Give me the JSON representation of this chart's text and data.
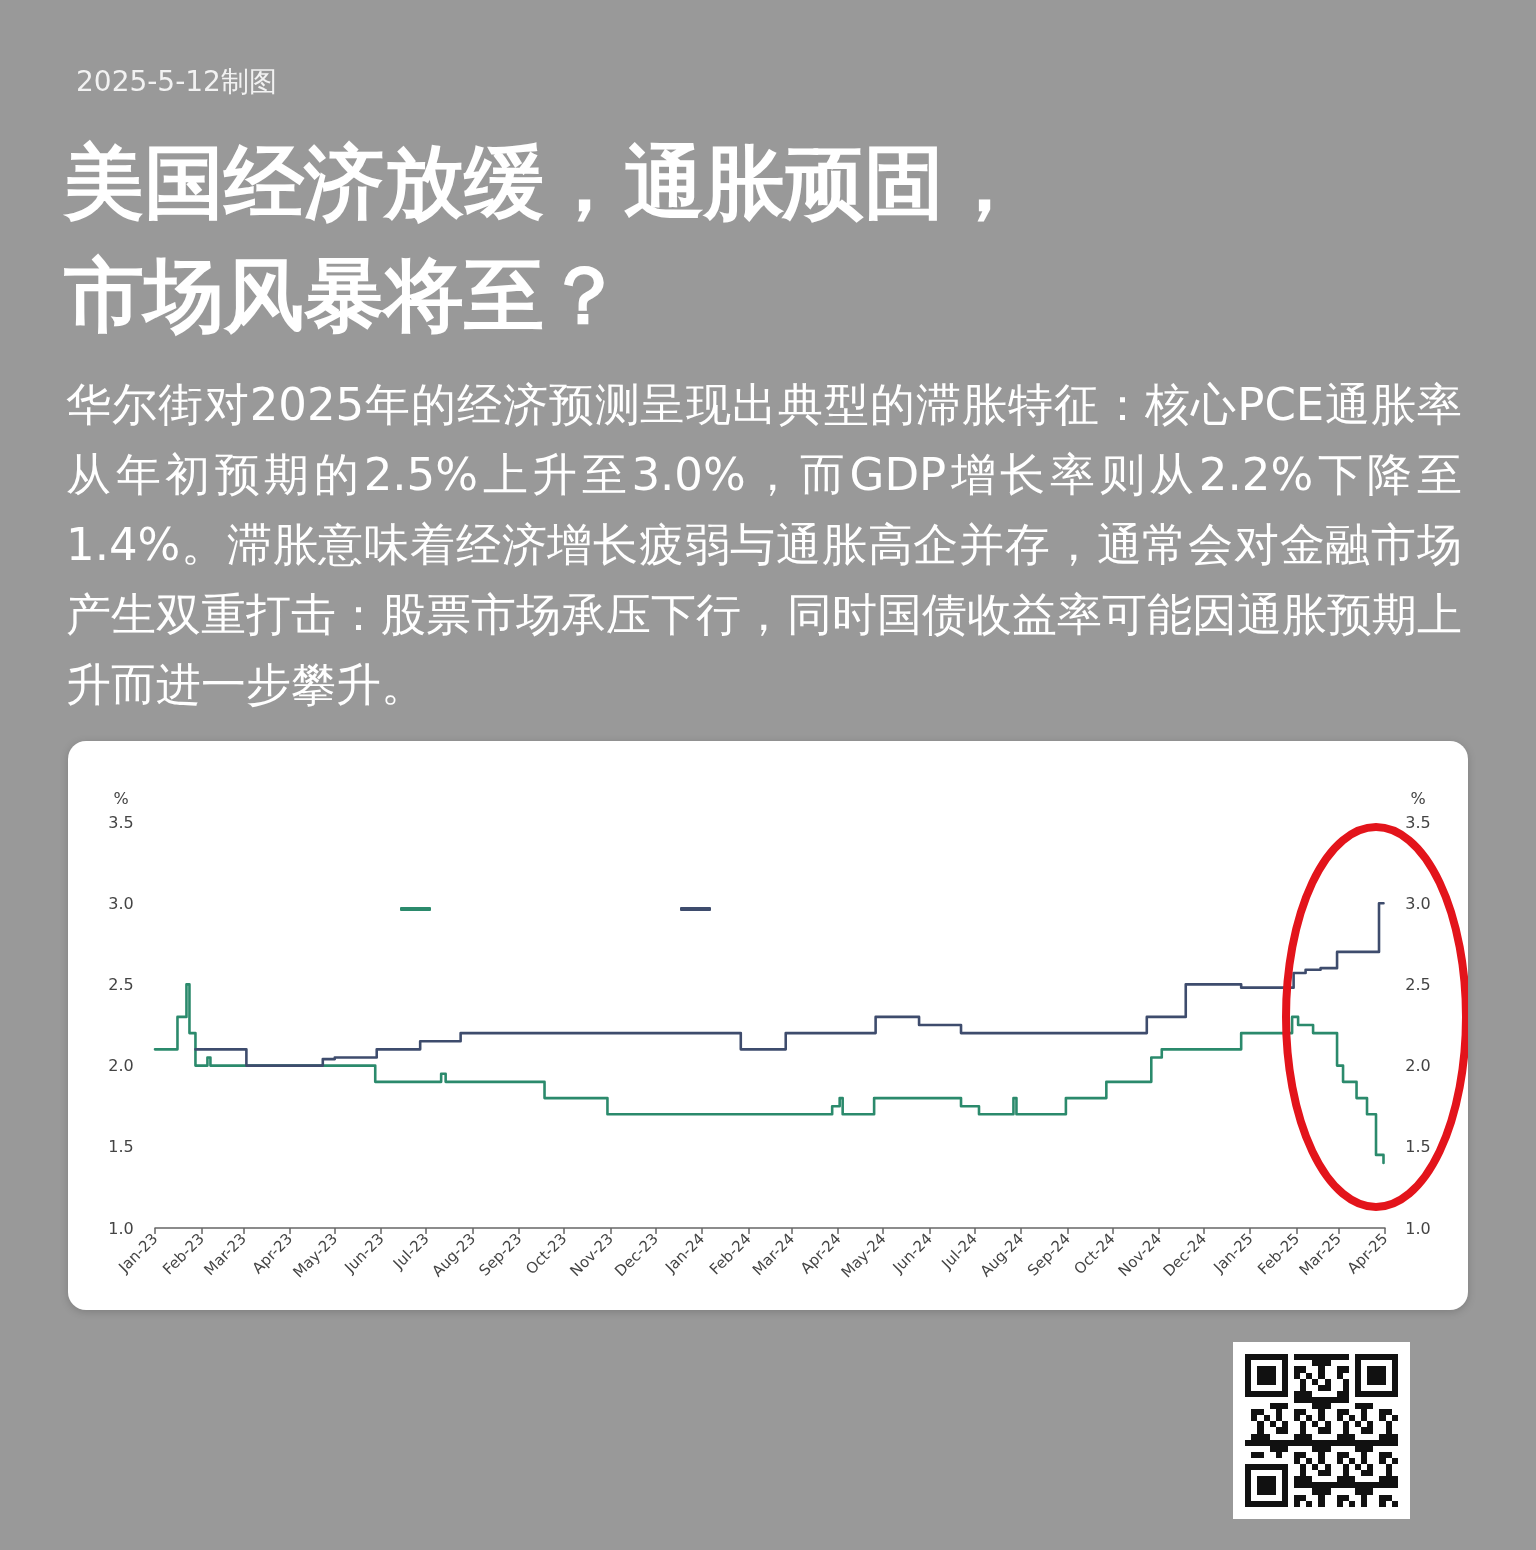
{
  "chart_data": {
    "type": "step",
    "title": "美国经济放缓，通胀顽固，市场风暴将至？",
    "subtitle": "华尔街对2025年的经济预测呈现出典型的滞胀特征：核心PCE通胀率从年初预期的2.5%上升至3.0%，而GDP增长率则从2.2%下降至1.4%。滞胀意味着经济增长疲弱与通胀高企并存，通常会对金融市场产生双重打击：股票市场承压下行，同时国债收益率可能因通胀预期上升而进一步攀升。",
    "annotations": [
      "2025-5-12制图"
    ],
    "ylabel": "%",
    "y2label": "%",
    "xlim": [
      "2023-01-01",
      "2025-04-01"
    ],
    "xticks": [
      {
        "value": "2023-01",
        "label": "Jan-23"
      },
      {
        "value": "2023-02",
        "label": "Feb-23"
      },
      {
        "value": "2023-03",
        "label": "Mar-23"
      },
      {
        "value": "2023-04",
        "label": "Apr-23"
      },
      {
        "value": "2023-05",
        "label": "May-23"
      },
      {
        "value": "2023-06",
        "label": "Jun-23"
      },
      {
        "value": "2023-07",
        "label": "Jul-23"
      },
      {
        "value": "2023-08",
        "label": "Aug-23"
      },
      {
        "value": "2023-09",
        "label": "Sep-23"
      },
      {
        "value": "2023-10",
        "label": "Oct-23"
      },
      {
        "value": "2023-11",
        "label": "Nov-23"
      },
      {
        "value": "2023-12",
        "label": "Dec-23"
      },
      {
        "value": "2024-01",
        "label": "Jan-24"
      },
      {
        "value": "2024-02",
        "label": "Feb-24"
      },
      {
        "value": "2024-03",
        "label": "Mar-24"
      },
      {
        "value": "2024-04",
        "label": "Apr-24"
      },
      {
        "value": "2024-05",
        "label": "May-24"
      },
      {
        "value": "2024-06",
        "label": "Jun-24"
      },
      {
        "value": "2024-07",
        "label": "Jul-24"
      },
      {
        "value": "2024-08",
        "label": "Aug-24"
      },
      {
        "value": "2024-09",
        "label": "Sep-24"
      },
      {
        "value": "2024-10",
        "label": "Oct-24"
      },
      {
        "value": "2024-11",
        "label": "Nov-24"
      },
      {
        "value": "2024-12",
        "label": "Dec-24"
      },
      {
        "value": "2025-01",
        "label": "Jan-25"
      },
      {
        "value": "2025-02",
        "label": "Feb-25"
      },
      {
        "value": "2025-03",
        "label": "Mar-25"
      },
      {
        "value": "2025-04",
        "label": "Apr-25"
      }
    ],
    "ylim": [
      1,
      3.5
    ],
    "yticks": [
      {
        "value": 1,
        "label": "1.0"
      },
      1.5,
      {
        "value": 2,
        "label": "2.0"
      },
      2.5,
      {
        "value": 3,
        "label": "3.0"
      },
      3.5
    ],
    "y2lim": [
      1,
      3.5
    ],
    "y2ticks": [
      {
        "value": 1,
        "label": "1.0"
      },
      1.5,
      {
        "value": 2,
        "label": "2.0"
      },
      2.5,
      {
        "value": 3,
        "label": "3.0"
      },
      3.5
    ],
    "marker": "none",
    "series": [
      {
        "color": "#2b8a6c",
        "x": [
          "2023-01-01",
          "2023-01-16",
          "2023-01-22",
          "2023-01-24",
          "2023-01-28",
          "2023-02-05",
          "2023-02-07",
          "2023-05-28",
          "2023-07-11",
          "2023-07-14",
          "2023-09-18",
          "2023-10-30",
          "2024-03-28",
          "2024-04-02",
          "2024-04-04",
          "2024-04-25",
          "2024-06-22",
          "2024-07-04",
          "2024-07-27",
          "2024-07-29",
          "2024-08-31",
          "2024-09-27",
          "2024-10-27",
          "2024-11-03",
          "2024-12-26",
          "2025-01-29",
          "2025-02-02",
          "2025-02-12",
          "2025-02-28",
          "2025-03-04",
          "2025-03-13",
          "2025-03-20",
          "2025-03-26",
          "2025-03-31"
        ],
        "values": [
          2.1,
          2.3,
          2.5,
          2.2,
          2.0,
          2.05,
          2.0,
          1.9,
          1.95,
          1.9,
          1.8,
          1.7,
          1.75,
          1.8,
          1.7,
          1.8,
          1.75,
          1.7,
          1.8,
          1.7,
          1.8,
          1.9,
          2.05,
          2.1,
          2.2,
          2.3,
          2.25,
          2.2,
          2.0,
          1.9,
          1.8,
          1.7,
          1.45,
          1.4
        ]
      },
      {
        "color": "#3e4c6d",
        "x": [
          "2023-01-28",
          "2023-03-03",
          "2023-04-23",
          "2023-05-01",
          "2023-05-29",
          "2023-06-27",
          "2023-07-24",
          "2024-01-27",
          "2024-02-26",
          "2024-04-26",
          "2024-05-25",
          "2024-06-22",
          "2024-10-24",
          "2024-11-19",
          "2024-12-26",
          "2025-01-30",
          "2025-02-07",
          "2025-02-17",
          "2025-02-28",
          "2025-03-28",
          "2025-03-31"
        ],
        "values": [
          2.1,
          2.0,
          2.04,
          2.05,
          2.1,
          2.15,
          2.2,
          2.1,
          2.2,
          2.3,
          2.25,
          2.2,
          2.3,
          2.5,
          2.48,
          2.57,
          2.59,
          2.6,
          2.7,
          3.0,
          3.0
        ]
      }
    ]
  }
}
